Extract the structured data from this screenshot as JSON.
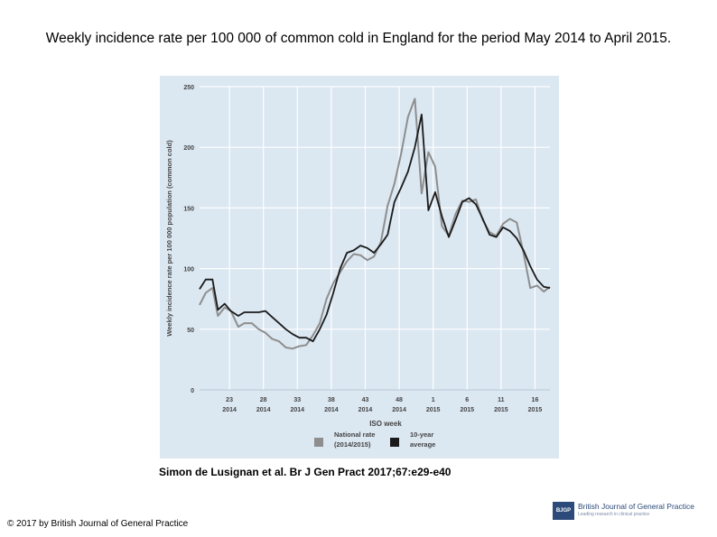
{
  "title": "Weekly incidence rate per 100 000 of common cold in England for the period May 2014 to April 2015.",
  "citation": "Simon de Lusignan et al. Br J Gen Pract 2017;67:e29-e40",
  "copyright": "© 2017 by British Journal of General Practice",
  "journal": {
    "name": "British Journal of General Practice",
    "tagline": "Leading research in clinical practice",
    "badge": "BJGP"
  },
  "colors": {
    "plot_bg": "#dbe7f1",
    "national": "#8e8e8e",
    "average": "#1a1a1a",
    "axis_text": "#444444"
  },
  "chart_data": {
    "type": "line",
    "title": "",
    "xlabel": "ISO week",
    "ylabel": "Weekly incidence rate per 100 000 population (common cold)",
    "ylim": [
      0,
      250
    ],
    "yticks": [
      0,
      50,
      100,
      150,
      200,
      250
    ],
    "xticks": [
      {
        "week": 23,
        "label": "23",
        "year": "2014"
      },
      {
        "week": 28,
        "label": "28",
        "year": "2014"
      },
      {
        "week": 33,
        "label": "33",
        "year": "2014"
      },
      {
        "week": 38,
        "label": "38",
        "year": "2014"
      },
      {
        "week": 43,
        "label": "43",
        "year": "2014"
      },
      {
        "week": 48,
        "label": "48",
        "year": "2014"
      },
      {
        "week": 53,
        "label": "1",
        "year": "2015"
      },
      {
        "week": 58,
        "label": "6",
        "year": "2015"
      },
      {
        "week": 63,
        "label": "11",
        "year": "2015"
      },
      {
        "week": 68,
        "label": "16",
        "year": "2015"
      }
    ],
    "xlim": [
      18.6,
      70.2
    ],
    "series": [
      {
        "name": "National rate (2014/2015)",
        "legend_lines": [
          "National rate",
          "(2014/2015)"
        ],
        "color_key": "national",
        "x": [
          18.6,
          19.5,
          20.5,
          21.3,
          22.3,
          23.2,
          24.3,
          25.2,
          26.3,
          27.3,
          28.3,
          29.3,
          30.3,
          31.3,
          32.3,
          33.3,
          34.3,
          35.3,
          36.3,
          37.3,
          38.3,
          39.3,
          40.3,
          41.3,
          42.3,
          43.3,
          44.3,
          45.3,
          46.3,
          47.3,
          48.3,
          49.3,
          50.3,
          51.3,
          52.3,
          53.3,
          54.3,
          55.3,
          56.3,
          57.3,
          58.3,
          59.3,
          60.3,
          61.3,
          62.3,
          63.3,
          64.3,
          65.3,
          66.3,
          67.3,
          68.3,
          69.3,
          70.2
        ],
        "values": [
          70,
          80,
          84,
          61,
          68,
          65,
          52,
          55,
          55,
          50,
          47,
          42,
          40,
          35,
          34,
          36,
          37,
          45,
          55,
          75,
          88,
          97,
          106,
          112,
          111,
          107,
          110,
          122,
          152,
          170,
          195,
          225,
          240,
          162,
          196,
          184,
          135,
          127,
          145,
          156,
          155,
          157,
          140,
          130,
          127,
          137,
          141,
          138,
          113,
          84,
          86,
          81,
          85
        ]
      },
      {
        "name": "10-year average",
        "legend_lines": [
          "10-year",
          "average"
        ],
        "color_key": "average",
        "x": [
          18.6,
          19.5,
          20.5,
          21.3,
          22.3,
          23.2,
          24.3,
          25.2,
          26.3,
          27.3,
          28.3,
          29.3,
          30.3,
          31.3,
          32.3,
          33.3,
          34.3,
          35.3,
          36.3,
          37.3,
          38.3,
          39.3,
          40.3,
          41.3,
          42.3,
          43.3,
          44.3,
          45.3,
          46.3,
          47.3,
          48.3,
          49.3,
          50.3,
          51.3,
          52.3,
          53.3,
          54.3,
          55.3,
          56.3,
          57.3,
          58.3,
          59.3,
          60.3,
          61.3,
          62.3,
          63.3,
          64.3,
          65.3,
          66.3,
          67.3,
          68.3,
          69.3,
          70.2
        ],
        "values": [
          83,
          91,
          91,
          66,
          71,
          65,
          61,
          64,
          64,
          64,
          65,
          60,
          55,
          50,
          46,
          43,
          43,
          40,
          50,
          62,
          80,
          100,
          113,
          115,
          119,
          117,
          113,
          120,
          128,
          155,
          167,
          180,
          200,
          227,
          148,
          163,
          143,
          126,
          140,
          155,
          158,
          153,
          141,
          128,
          126,
          134,
          131,
          125,
          115,
          102,
          91,
          85,
          84
        ]
      }
    ],
    "legend_position": "bottom"
  }
}
